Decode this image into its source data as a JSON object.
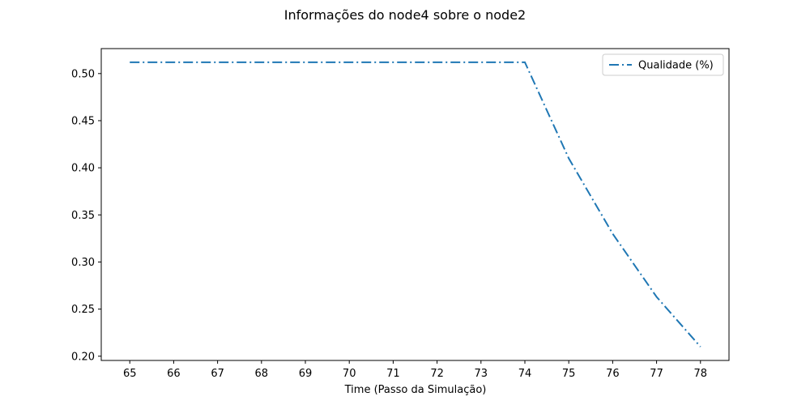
{
  "chart_data": {
    "type": "line",
    "title": "Informações do node4 sobre o node2",
    "xlabel": "Time (Passo da Simulação)",
    "ylabel": "",
    "x": [
      65,
      66,
      67,
      68,
      69,
      70,
      71,
      72,
      73,
      74,
      75,
      76,
      77,
      78
    ],
    "series": [
      {
        "name": "Qualidade (%)",
        "color": "#1f77b4",
        "line_style": "dashdot",
        "values": [
          0.512,
          0.512,
          0.512,
          0.512,
          0.512,
          0.512,
          0.512,
          0.512,
          0.512,
          0.512,
          0.41,
          0.33,
          0.263,
          0.21
        ]
      }
    ],
    "xticks": [
      "65",
      "66",
      "67",
      "68",
      "69",
      "70",
      "71",
      "72",
      "73",
      "74",
      "75",
      "76",
      "77",
      "78"
    ],
    "yticks": [
      0.2,
      0.25,
      0.3,
      0.35,
      0.4,
      0.45,
      0.5
    ],
    "ytick_labels": [
      "0.20",
      "0.25",
      "0.30",
      "0.35",
      "0.40",
      "0.45",
      "0.50"
    ],
    "xlim": [
      64.35,
      78.65
    ],
    "ylim": [
      0.1955,
      0.5265
    ],
    "grid": false,
    "legend_position": "upper right"
  }
}
